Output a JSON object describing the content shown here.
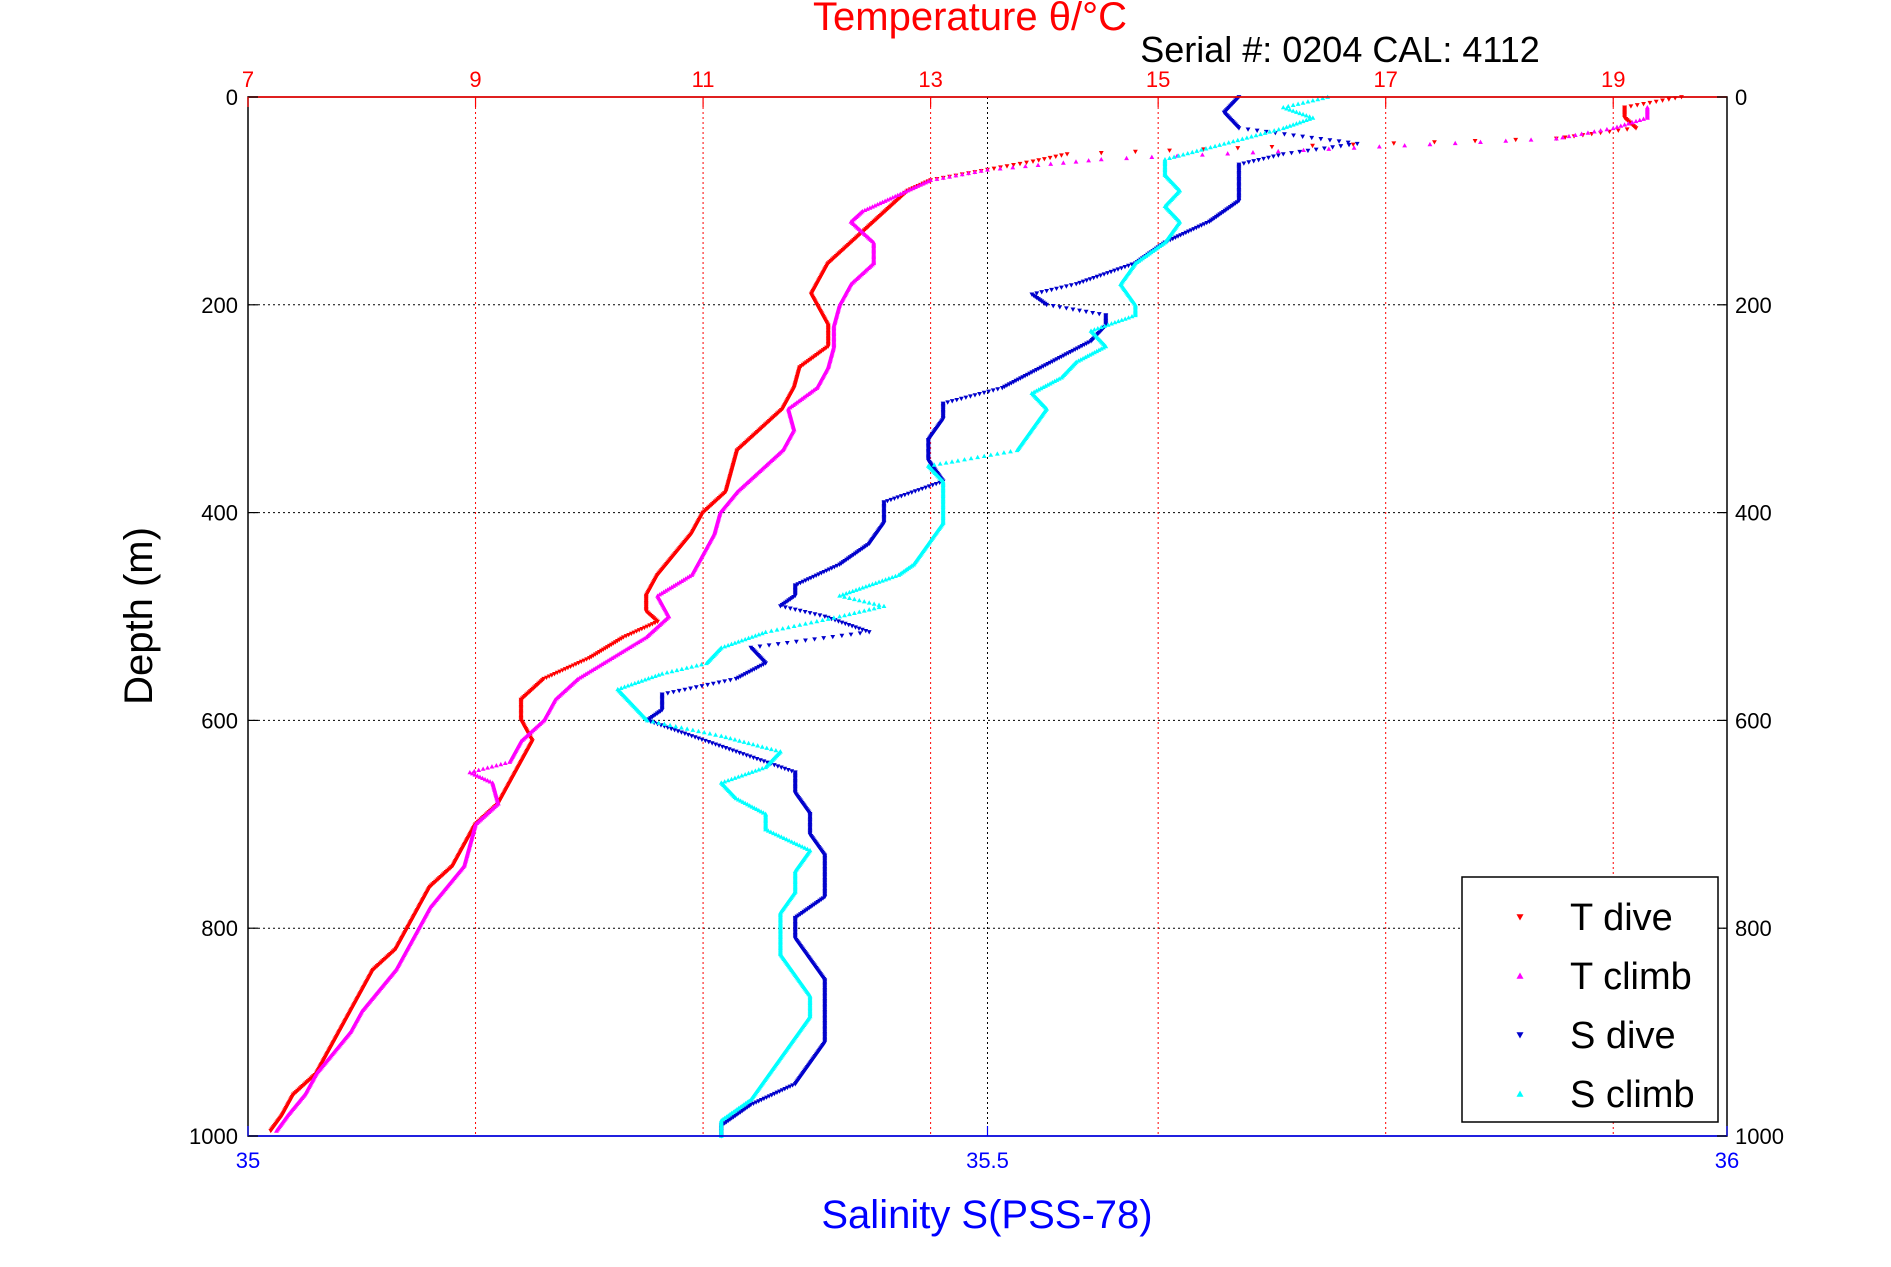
{
  "colors": {
    "temperature_axis": "#ff0000",
    "salinity_axis": "#0000ff",
    "t_dive": "#ff0000",
    "t_climb": "#ff00ff",
    "s_dive": "#0000cc",
    "s_climb": "#00ffff"
  },
  "chart_data": {
    "type": "scatter",
    "title": "Temperature θ/°C",
    "subtitle": "Serial #: 0204  CAL: 4112",
    "ylabel": "Depth (m)",
    "top_xlabel": "Temperature θ/°C",
    "bottom_xlabel": "Salinity S(PSS-78)",
    "ylim": [
      0,
      1000
    ],
    "y_reversed": true,
    "y_ticks": [
      "0",
      "200",
      "400",
      "600",
      "800",
      "1000"
    ],
    "temperature_xlim": [
      7,
      20
    ],
    "temperature_ticks": [
      "7",
      "9",
      "11",
      "13",
      "15",
      "17",
      "19"
    ],
    "salinity_xlim": [
      35,
      36
    ],
    "salinity_ticks": [
      "35",
      "35.5",
      "36"
    ],
    "grid": true,
    "legend_position": "bottom-right",
    "legend": [
      "T dive",
      "T climb",
      "S dive",
      "S climb"
    ],
    "series": [
      {
        "name": "T dive",
        "axis": "temperature",
        "marker": "triangle-down",
        "depth": [
          0,
          10,
          20,
          30,
          40,
          48,
          55,
          62,
          70,
          80,
          90,
          100,
          110,
          120,
          140,
          160,
          180,
          190,
          200,
          220,
          240,
          260,
          280,
          300,
          320,
          340,
          360,
          380,
          400,
          420,
          440,
          460,
          480,
          495,
          505,
          520,
          540,
          560,
          580,
          600,
          620,
          640,
          660,
          680,
          700,
          720,
          740,
          760,
          780,
          800,
          820,
          840,
          860,
          880,
          900,
          920,
          940,
          960,
          980,
          995
        ],
        "values": [
          19.6,
          19.1,
          19.1,
          19.2,
          18.5,
          16.0,
          14.2,
          13.9,
          13.5,
          13.0,
          12.8,
          12.7,
          12.6,
          12.5,
          12.3,
          12.1,
          12.0,
          11.95,
          12.0,
          12.1,
          12.1,
          11.85,
          11.8,
          11.7,
          11.5,
          11.3,
          11.25,
          11.2,
          11.0,
          10.9,
          10.75,
          10.6,
          10.5,
          10.5,
          10.6,
          10.3,
          10.0,
          9.6,
          9.4,
          9.4,
          9.5,
          9.4,
          9.3,
          9.2,
          9.0,
          8.9,
          8.8,
          8.6,
          8.5,
          8.4,
          8.3,
          8.1,
          8.0,
          7.9,
          7.8,
          7.7,
          7.6,
          7.4,
          7.3,
          7.2
        ]
      },
      {
        "name": "T climb",
        "axis": "temperature",
        "marker": "triangle-up",
        "depth": [
          995,
          980,
          960,
          940,
          920,
          900,
          880,
          860,
          840,
          820,
          800,
          780,
          760,
          740,
          720,
          700,
          680,
          660,
          650,
          640,
          620,
          600,
          580,
          560,
          540,
          520,
          500,
          480,
          460,
          440,
          420,
          400,
          380,
          360,
          340,
          320,
          300,
          280,
          260,
          240,
          220,
          200,
          180,
          160,
          140,
          120,
          110,
          100,
          90,
          80,
          70,
          60,
          50,
          40,
          30,
          20,
          10
        ],
        "values": [
          7.25,
          7.35,
          7.5,
          7.6,
          7.75,
          7.9,
          8.0,
          8.15,
          8.3,
          8.4,
          8.5,
          8.6,
          8.75,
          8.9,
          8.95,
          9.0,
          9.2,
          9.15,
          8.95,
          9.3,
          9.4,
          9.6,
          9.7,
          9.9,
          10.2,
          10.5,
          10.7,
          10.6,
          10.9,
          11.0,
          11.1,
          11.15,
          11.3,
          11.5,
          11.7,
          11.8,
          11.75,
          12.0,
          12.1,
          12.15,
          12.15,
          12.2,
          12.3,
          12.5,
          12.5,
          12.3,
          12.4,
          12.6,
          12.8,
          13.0,
          13.5,
          14.5,
          16.5,
          18.5,
          19.0,
          19.3,
          19.3
        ]
      },
      {
        "name": "S dive",
        "axis": "salinity",
        "marker": "triangle-down",
        "depth": [
          0,
          15,
          30,
          45,
          55,
          65,
          80,
          100,
          120,
          140,
          160,
          180,
          190,
          200,
          210,
          220,
          235,
          250,
          265,
          280,
          295,
          310,
          330,
          350,
          370,
          390,
          410,
          430,
          450,
          470,
          480,
          490,
          500,
          515,
          530,
          545,
          560,
          575,
          590,
          600,
          615,
          630,
          650,
          670,
          690,
          710,
          730,
          750,
          770,
          790,
          810,
          830,
          850,
          870,
          890,
          910,
          930,
          950,
          970,
          990,
          1000
        ],
        "values": [
          35.67,
          35.66,
          35.67,
          35.75,
          35.7,
          35.67,
          35.67,
          35.67,
          35.65,
          35.62,
          35.6,
          35.56,
          35.53,
          35.54,
          35.58,
          35.58,
          35.57,
          35.55,
          35.53,
          35.51,
          35.47,
          35.47,
          35.46,
          35.46,
          35.47,
          35.43,
          35.43,
          35.42,
          35.4,
          35.37,
          35.37,
          35.36,
          35.39,
          35.42,
          35.34,
          35.35,
          35.33,
          35.28,
          35.28,
          35.27,
          35.3,
          35.33,
          35.37,
          35.37,
          35.38,
          35.38,
          35.39,
          35.39,
          35.39,
          35.37,
          35.37,
          35.38,
          35.39,
          35.39,
          35.39,
          35.39,
          35.38,
          35.37,
          35.34,
          35.32,
          35.32
        ]
      },
      {
        "name": "S climb",
        "axis": "salinity",
        "marker": "triangle-up",
        "depth": [
          1000,
          985,
          965,
          945,
          925,
          905,
          885,
          865,
          845,
          825,
          805,
          785,
          765,
          745,
          725,
          705,
          690,
          675,
          660,
          645,
          630,
          615,
          600,
          585,
          570,
          555,
          545,
          530,
          515,
          500,
          490,
          480,
          470,
          460,
          450,
          430,
          410,
          390,
          370,
          355,
          350,
          340,
          320,
          300,
          285,
          270,
          255,
          240,
          225,
          210,
          200,
          180,
          160,
          140,
          120,
          105,
          90,
          75,
          60,
          45,
          30,
          20,
          10,
          0
        ],
        "values": [
          35.32,
          35.32,
          35.34,
          35.35,
          35.36,
          35.37,
          35.38,
          35.38,
          35.37,
          35.36,
          35.36,
          35.36,
          35.37,
          35.37,
          35.38,
          35.35,
          35.35,
          35.33,
          35.32,
          35.35,
          35.36,
          35.32,
          35.27,
          35.26,
          35.25,
          35.28,
          35.31,
          35.32,
          35.35,
          35.4,
          35.43,
          35.4,
          35.42,
          35.44,
          35.45,
          35.46,
          35.47,
          35.47,
          35.47,
          35.46,
          35.48,
          35.52,
          35.53,
          35.54,
          35.53,
          35.55,
          35.56,
          35.58,
          35.57,
          35.6,
          35.6,
          35.59,
          35.6,
          35.62,
          35.63,
          35.62,
          35.63,
          35.62,
          35.62,
          35.66,
          35.7,
          35.72,
          35.7,
          35.73
        ]
      }
    ]
  }
}
